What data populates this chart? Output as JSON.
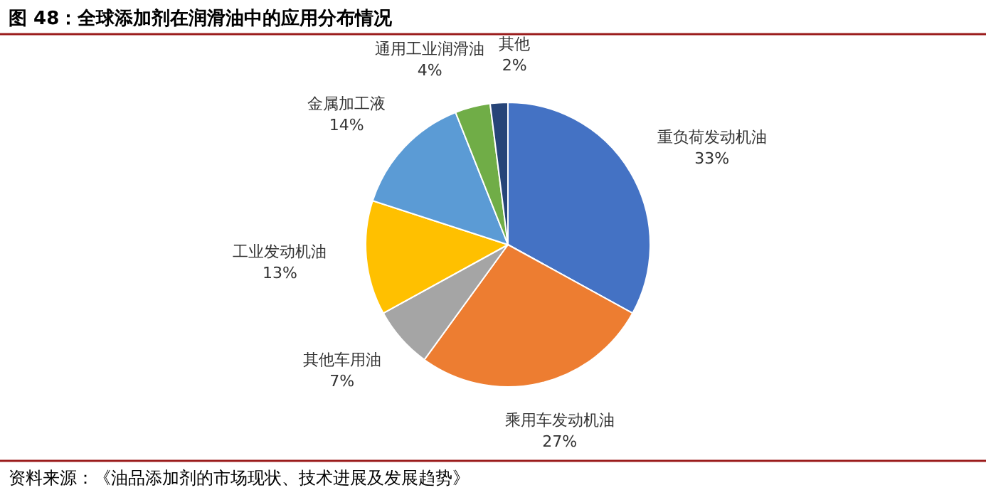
{
  "chart_data": {
    "type": "pie",
    "title": "图 48：全球添加剂在润滑油中的应用分布情况",
    "categories": [
      "重负荷发动机油",
      "乘用车发动机油",
      "其他车用油",
      "工业发动机油",
      "金属加工液",
      "通用工业润滑油",
      "其他"
    ],
    "values": [
      33,
      27,
      7,
      13,
      14,
      4,
      2
    ],
    "value_labels": [
      "33%",
      "27%",
      "7%",
      "13%",
      "14%",
      "4%",
      "2%"
    ],
    "colors": [
      "#4472c4",
      "#ed7d31",
      "#a5a5a5",
      "#ffc000",
      "#5b9bd5",
      "#70ad47",
      "#264478"
    ],
    "annotations": [
      "资料来源：《油品添加剂的市场现状、技术进展及发展趋势》"
    ]
  }
}
